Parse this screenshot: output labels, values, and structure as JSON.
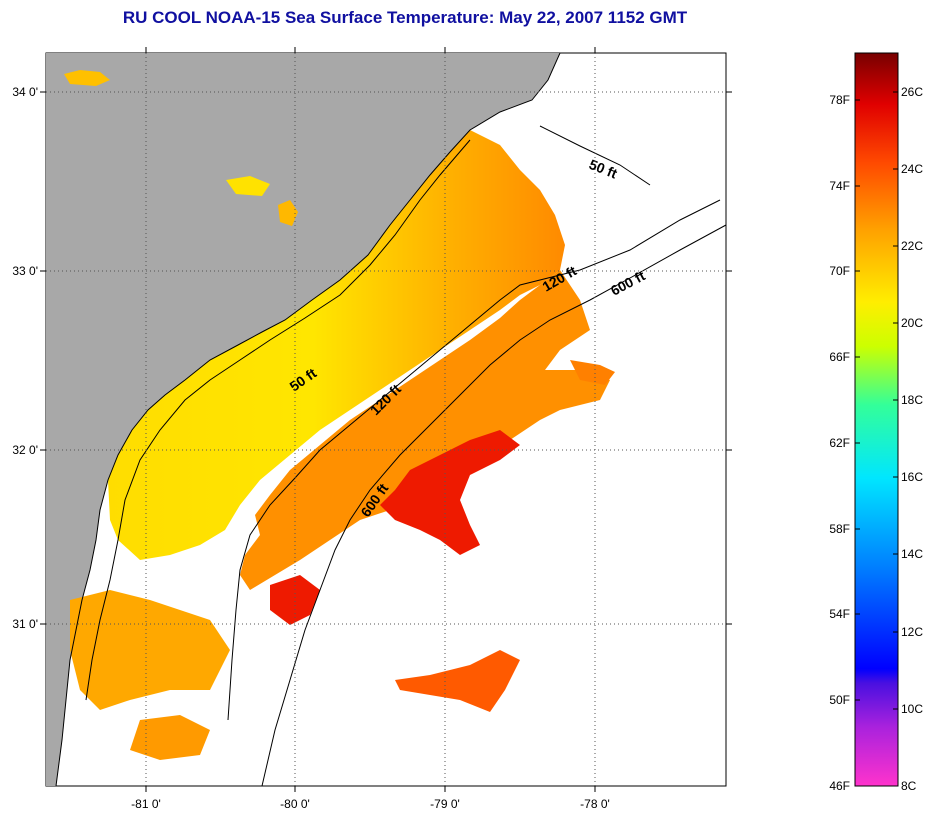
{
  "title": "RU COOL  NOAA-15  Sea Surface Temperature:  May 22, 2007 1152 GMT",
  "map": {
    "lat_labels": [
      "34 0'",
      "33 0'",
      "32 0'",
      "31 0'"
    ],
    "lon_labels": [
      "-81 0'",
      "-80 0'",
      "-79 0'",
      "-78 0'"
    ],
    "depth_contours": [
      {
        "label": "50 ft",
        "id": "depth-50ft-north"
      },
      {
        "label": "50 ft",
        "id": "depth-50ft-south"
      },
      {
        "label": "120 ft",
        "id": "depth-120ft-north"
      },
      {
        "label": "120 ft",
        "id": "depth-120ft-south"
      },
      {
        "label": "600 ft",
        "id": "depth-600ft-north"
      },
      {
        "label": "600 ft",
        "id": "depth-600ft-south"
      }
    ],
    "colors": {
      "land": "#a8a8a8",
      "ocean_nodata": "#ffffff",
      "grid": "#555555"
    }
  },
  "colorbar": {
    "fahrenheit_labels": [
      "78F",
      "74F",
      "70F",
      "66F",
      "62F",
      "58F",
      "54F",
      "50F",
      "46F"
    ],
    "celsius_labels": [
      "26C",
      "24C",
      "22C",
      "20C",
      "18C",
      "16C",
      "14C",
      "12C",
      "10C",
      "8C"
    ],
    "range_c": [
      8,
      27
    ],
    "gradient_colors": [
      "#ff33cc",
      "#7a1fd0",
      "#0000ff",
      "#0080ff",
      "#00e6ff",
      "#33ff99",
      "#ccff00",
      "#ffee00",
      "#ffa000",
      "#ff4a00",
      "#e00000",
      "#780000"
    ]
  }
}
